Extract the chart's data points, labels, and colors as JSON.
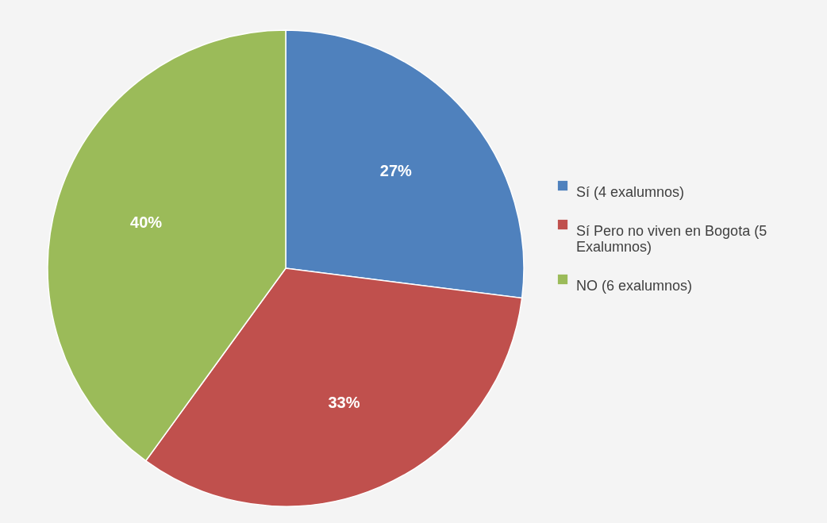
{
  "chart_data": {
    "type": "pie",
    "categories": [
      "Sí (4 exalumnos)",
      "Sí Pero no viven en Bogota (5 Exalumnos)",
      "NO (6 exalumnos)"
    ],
    "values": [
      27,
      33,
      40
    ],
    "colors": [
      "#4f81bd",
      "#c0504d",
      "#9bbb59"
    ],
    "value_labels": [
      "27%",
      "33%",
      "40%"
    ],
    "legend": "right"
  }
}
